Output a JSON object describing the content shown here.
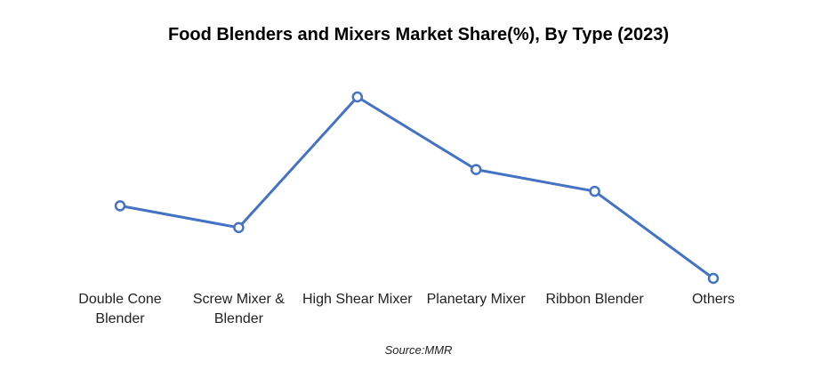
{
  "chart_data": {
    "type": "line",
    "title": "Food Blenders and Mixers Market Share(%), By Type (2023)",
    "categories": [
      "Double Cone Blender",
      "Screw Mixer & Blender",
      "High Shear Mixer",
      "Planetary Mixer",
      "Ribbon Blender",
      "Others"
    ],
    "values": [
      15,
      12,
      30,
      20,
      17,
      5
    ],
    "color": "#4472c4",
    "source": "Source:MMR"
  }
}
